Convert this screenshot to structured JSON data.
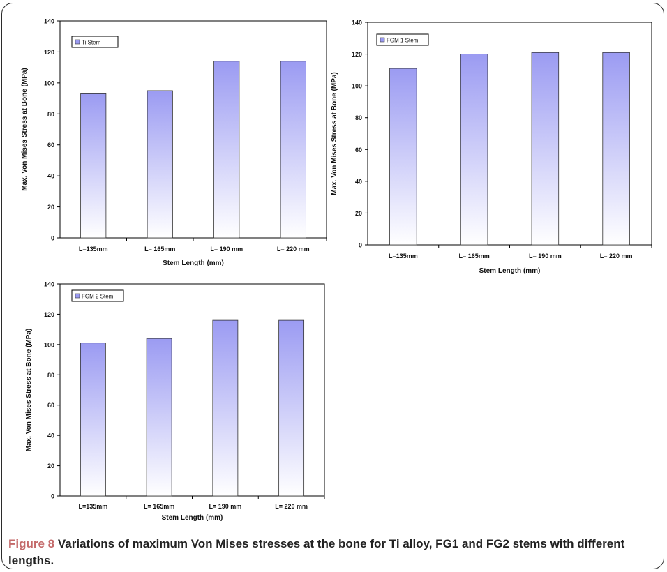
{
  "figure": {
    "caption_label": "Figure 8",
    "caption_text": "Variations of maximum Von Mises stresses at the bone for Ti alloy, FG1 and FG2 stems with different lengths."
  },
  "colors": {
    "bar_top": "#9b9bf2",
    "bar_bottom": "#ffffff",
    "bar_stroke": "#333333",
    "axis": "#000000"
  },
  "chart_data": [
    {
      "type": "bar",
      "legend": "Ti Stem",
      "legend_position": "top-left",
      "ylabel": "Max. Von Mises Stress at Bone (MPa)",
      "xlabel": "Stem Length (mm)",
      "ylim": [
        0,
        140
      ],
      "yticks": [
        0,
        20,
        40,
        60,
        80,
        100,
        120,
        140
      ],
      "categories": [
        "L=135mm",
        "L= 165mm",
        "L= 190 mm",
        "L= 220 mm"
      ],
      "series": [
        {
          "name": "Ti Stem",
          "values": [
            93,
            95,
            114,
            114
          ]
        }
      ]
    },
    {
      "type": "bar",
      "legend": "FGM 1 Stem",
      "legend_position": "top-left",
      "ylabel": "Max. Von Mises Stress at Bone (MPa)",
      "xlabel": "Stem Length (mm)",
      "ylim": [
        0,
        140
      ],
      "yticks": [
        0,
        20,
        40,
        60,
        80,
        100,
        120,
        140
      ],
      "categories": [
        "L=135mm",
        "L= 165mm",
        "L= 190 mm",
        "L= 220 mm"
      ],
      "series": [
        {
          "name": "FGM 1 Stem",
          "values": [
            111,
            120,
            121,
            121
          ]
        }
      ]
    },
    {
      "type": "bar",
      "legend": "FGM 2 Stem",
      "legend_position": "top-left",
      "ylabel": "Max. Von Mises Stress at Bone (MPa)",
      "xlabel": "Stem Length (mm)",
      "ylim": [
        0,
        140
      ],
      "yticks": [
        0,
        20,
        40,
        60,
        80,
        100,
        120,
        140
      ],
      "categories": [
        "L=135mm",
        "L= 165mm",
        "L= 190 mm",
        "L= 220 mm"
      ],
      "series": [
        {
          "name": "FGM 2 Stem",
          "values": [
            101,
            104,
            116,
            116
          ]
        }
      ]
    }
  ]
}
